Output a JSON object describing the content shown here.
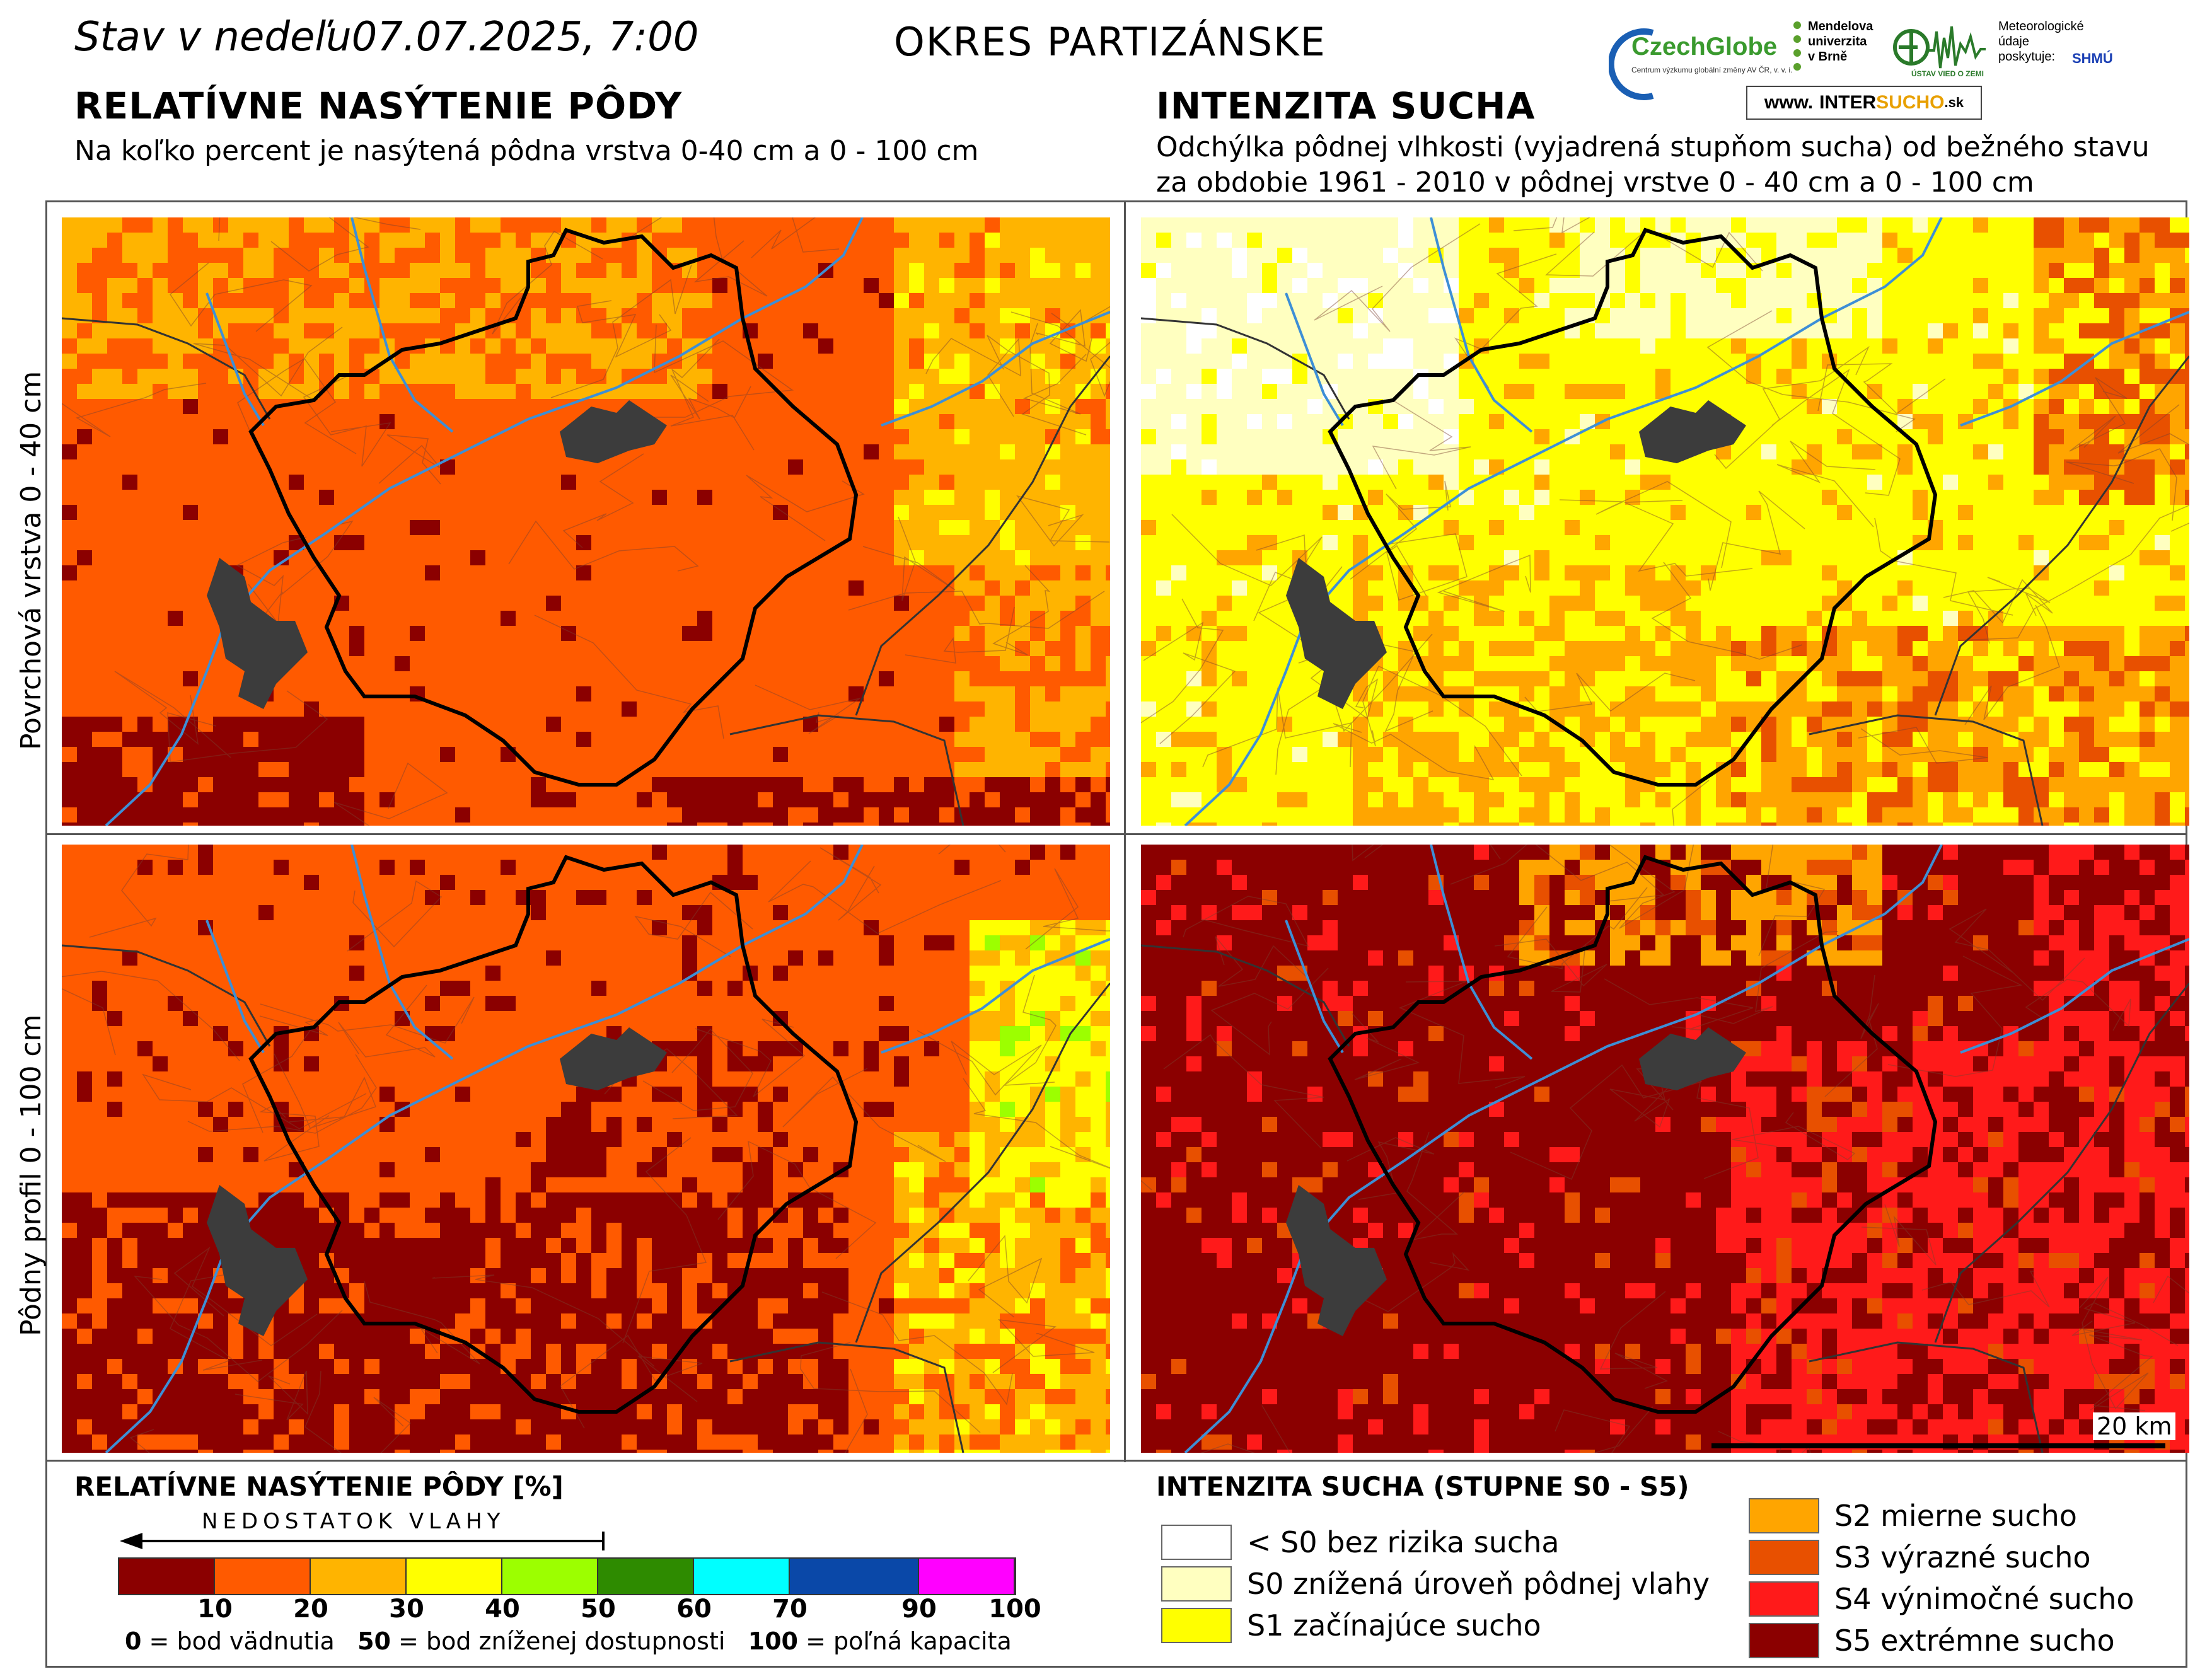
{
  "header": {
    "date_prefix": "Stav v nedeľu",
    "date_value": "07.07.2025, 7:00",
    "district": "OKRES  PARTIZÁNSKE",
    "left_title": "RELATÍVNE NASÝTENIE PÔDY",
    "left_subtitle": "Na koľko percent je nasýtená pôdna vrstva 0-40 cm a 0 - 100 cm",
    "right_title": "INTENZITA SUCHA",
    "right_subtitle_1": "Odchýlka pôdnej vlhkosti (vyjadrená stupňom sucha) od bežného stavu",
    "right_subtitle_2": "za obdobie 1961 - 2010 v pôdnej vrstve 0 - 40 cm a 0 - 100 cm"
  },
  "logos": {
    "czechglobe": "CzechGlobe",
    "czechglobe_small": "Centrum výzkumu globální změny AV ČR, v. v. i.",
    "mendel_1": "Mendelova",
    "mendel_2": "univerzita",
    "mendel_3": "v Brně",
    "ustav": "ÚSTAV VIED O ZEMI",
    "meteo_1": "Meteorologické",
    "meteo_2": "údaje",
    "meteo_3": "poskytuje:",
    "shmu": "SHMÚ",
    "intersucho_prefix": "www.",
    "intersucho_a": "INTER",
    "intersucho_b": "SUCHO",
    "intersucho_c": ".sk"
  },
  "rows": {
    "top_label": "Povrchová vrstva 0 - 40 cm",
    "bottom_label": "Pôdny profil 0 - 100 cm"
  },
  "scalebar": {
    "label": "20 km"
  },
  "legend_saturation": {
    "title": "RELATÍVNE NASÝTENIE PÔDY [%]",
    "arrow_text": "NEDOSTATOK VLAHY",
    "colors": [
      "#8b0000",
      "#ff5a00",
      "#ffb400",
      "#ffff00",
      "#9cff00",
      "#2e8b00",
      "#00ffff",
      "#0a48a8",
      "#ff00ff"
    ],
    "ticks": [
      "10",
      "20",
      "30",
      "40",
      "50",
      "60",
      "70",
      "90",
      "100"
    ],
    "note_0": "0",
    "note_0_text": " = bod vädnutia",
    "note_50": "50",
    "note_50_text": " = bod zníženej dostupnosti",
    "note_100": "100",
    "note_100_text": " = poľná kapacita"
  },
  "legend_drought": {
    "title": "INTENZITA SUCHA (STUPNE S0 - S5)",
    "items": [
      {
        "label": "< S0 bez rizika sucha",
        "color": "#ffffff"
      },
      {
        "label": "S0 znížená úroveň pôdnej vlahy",
        "color": "#ffffc0"
      },
      {
        "label": "S1 začínajúce sucho",
        "color": "#ffff00"
      },
      {
        "label": "S2 mierne sucho",
        "color": "#ffa500"
      },
      {
        "label": "S3 výrazné sucho",
        "color": "#e85000"
      },
      {
        "label": "S4 výnimočné sucho",
        "color": "#ff1a1a"
      },
      {
        "label": "S5 extrémne sucho",
        "color": "#8b0000"
      }
    ]
  }
}
